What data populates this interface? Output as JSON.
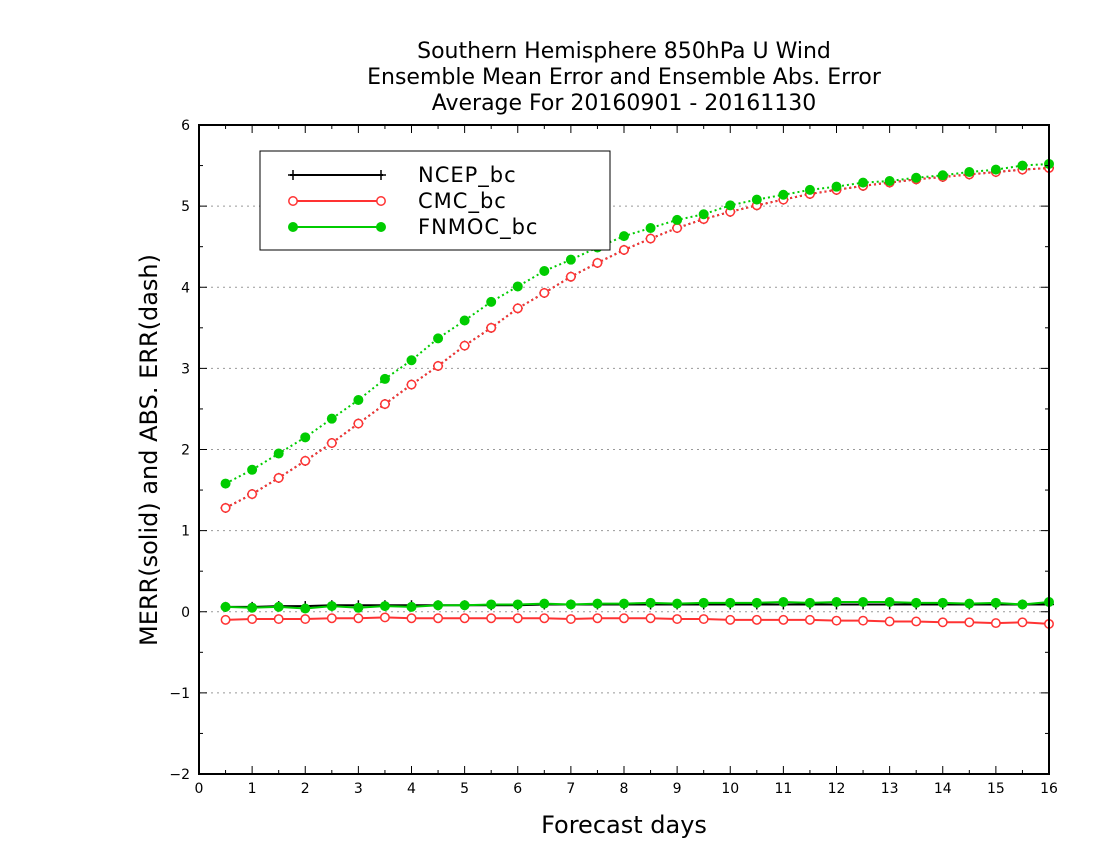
{
  "chart_data": {
    "type": "line",
    "title": [
      "Southern Hemisphere 850hPa U Wind",
      "Ensemble Mean Error and Ensemble Abs. Error",
      "Average For 20160901 - 20161130"
    ],
    "xlabel": "Forecast days",
    "ylabel": "MERR(solid) and ABS. ERR(dash)",
    "xlim": [
      0,
      16
    ],
    "ylim": [
      -2,
      6
    ],
    "xticks": [
      "0",
      "1",
      "2",
      "3",
      "4",
      "5",
      "6",
      "7",
      "8",
      "9",
      "10",
      "11",
      "12",
      "13",
      "14",
      "15",
      "16"
    ],
    "yticks": [
      "−2",
      "−1",
      "0",
      "1",
      "2",
      "3",
      "4",
      "5",
      "6"
    ],
    "grid": "horizontal dotted",
    "legend_position": "top-left",
    "x": [
      0.5,
      1,
      1.5,
      2,
      2.5,
      3,
      3.5,
      4,
      4.5,
      5,
      5.5,
      6,
      6.5,
      7,
      7.5,
      8,
      8.5,
      9,
      9.5,
      10,
      10.5,
      11,
      11.5,
      12,
      12.5,
      13,
      13.5,
      14,
      14.5,
      15,
      15.5,
      16
    ],
    "series": [
      {
        "name": "NCEP_bc",
        "color": "#000000",
        "marker": "plus",
        "merr": [
          0.06,
          0.06,
          0.07,
          0.07,
          0.08,
          0.08,
          0.08,
          0.08,
          0.08,
          0.08,
          0.08,
          0.08,
          0.09,
          0.09,
          0.09,
          0.09,
          0.09,
          0.09,
          0.09,
          0.09,
          0.09,
          0.09,
          0.09,
          0.09,
          0.09,
          0.09,
          0.09,
          0.09,
          0.09,
          0.09,
          0.09,
          0.09
        ],
        "abs_err": [
          1.28,
          1.45,
          1.65,
          1.86,
          2.08,
          2.32,
          2.56,
          2.8,
          3.03,
          3.28,
          3.5,
          3.74,
          3.93,
          4.13,
          4.3,
          4.46,
          4.6,
          4.73,
          4.84,
          4.93,
          5.01,
          5.08,
          5.15,
          5.2,
          5.25,
          5.29,
          5.33,
          5.36,
          5.39,
          5.42,
          5.45,
          5.47
        ]
      },
      {
        "name": "CMC_bc",
        "color": "#ff3333",
        "marker": "open-circle",
        "merr": [
          -0.1,
          -0.09,
          -0.09,
          -0.09,
          -0.08,
          -0.08,
          -0.07,
          -0.08,
          -0.08,
          -0.08,
          -0.08,
          -0.08,
          -0.08,
          -0.09,
          -0.08,
          -0.08,
          -0.08,
          -0.09,
          -0.09,
          -0.1,
          -0.1,
          -0.1,
          -0.1,
          -0.11,
          -0.11,
          -0.12,
          -0.12,
          -0.13,
          -0.13,
          -0.14,
          -0.13,
          -0.15
        ],
        "abs_err": [
          1.28,
          1.45,
          1.65,
          1.86,
          2.08,
          2.32,
          2.56,
          2.8,
          3.03,
          3.28,
          3.5,
          3.74,
          3.93,
          4.13,
          4.3,
          4.46,
          4.6,
          4.73,
          4.84,
          4.93,
          5.01,
          5.08,
          5.15,
          5.2,
          5.25,
          5.29,
          5.33,
          5.36,
          5.39,
          5.42,
          5.45,
          5.47
        ]
      },
      {
        "name": "FNMOC_bc",
        "color": "#00cc00",
        "marker": "filled-circle",
        "merr": [
          0.06,
          0.05,
          0.06,
          0.04,
          0.07,
          0.05,
          0.07,
          0.06,
          0.08,
          0.08,
          0.09,
          0.09,
          0.1,
          0.09,
          0.1,
          0.1,
          0.11,
          0.1,
          0.11,
          0.11,
          0.11,
          0.12,
          0.11,
          0.12,
          0.12,
          0.12,
          0.11,
          0.11,
          0.1,
          0.11,
          0.09,
          0.12
        ],
        "abs_err": [
          1.58,
          1.75,
          1.95,
          2.15,
          2.38,
          2.61,
          2.87,
          3.1,
          3.37,
          3.59,
          3.82,
          4.01,
          4.2,
          4.34,
          4.49,
          4.63,
          4.73,
          4.83,
          4.9,
          5.01,
          5.08,
          5.14,
          5.2,
          5.24,
          5.29,
          5.31,
          5.35,
          5.38,
          5.42,
          5.45,
          5.5,
          5.52
        ]
      }
    ]
  }
}
